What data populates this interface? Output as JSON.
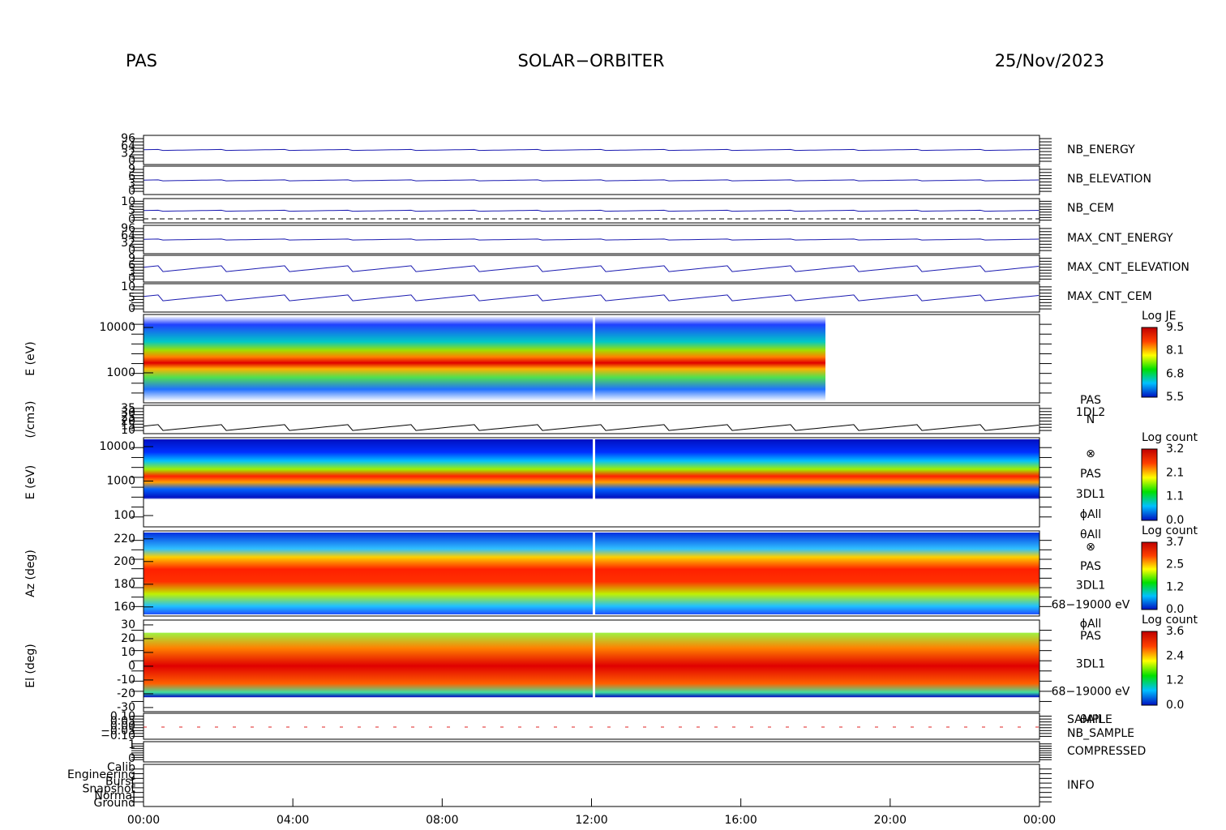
{
  "header": {
    "left": "PAS",
    "center": "SOLAR−ORBITER",
    "right": "25/Nov/2023"
  },
  "panels": [
    {
      "label": "NB_ENERGY",
      "label_color": "#1a1aa0",
      "yticks": [
        "96",
        "64",
        "32",
        "0"
      ]
    },
    {
      "label": "NB_ELEVATION",
      "label_color": "#1a1aa0",
      "yticks": [
        "9",
        "6",
        "3",
        "0"
      ]
    },
    {
      "label": "NB_CEM",
      "label_color": "#1a1aa0",
      "yticks": [
        "10",
        "5",
        "0"
      ]
    },
    {
      "label": "MAX_CNT_ENERGY",
      "label_color": "#1a1aa0",
      "yticks": [
        "96",
        "64",
        "32",
        "0"
      ]
    },
    {
      "label": "MAX_CNT_ELEVATION",
      "label_color": "#1a1aa0",
      "yticks": [
        "9",
        "6",
        "3",
        "0"
      ]
    },
    {
      "label": "MAX_CNT_CEM",
      "label_color": "#1a1aa0",
      "yticks": [
        "10",
        "5",
        "0"
      ]
    },
    {
      "ylabel": "E (eV)",
      "log": true,
      "ylim": [
        218,
        19300
      ],
      "yticks": [
        10000,
        1000
      ],
      "colorbar": {
        "title": "Log JE",
        "ticks": [
          "9.5",
          "8.1",
          "6.8",
          "5.5"
        ]
      }
    },
    {
      "ylabel": "(/cm3)",
      "yticks": [
        "35",
        "30",
        "25",
        "20",
        "15",
        "10"
      ],
      "right": [
        "PAS",
        "1DL2",
        "N"
      ]
    },
    {
      "ylabel": "E (eV)",
      "log": true,
      "ylim": [
        47,
        18140
      ],
      "yticks": [
        10000,
        1000,
        100
      ],
      "colorbar": {
        "title": "Log count",
        "ticks": [
          "3.2",
          "2.1",
          "1.1",
          "0.0"
        ]
      },
      "right": [
        "⊗",
        "PAS",
        "3DL1",
        "ϕAll",
        "θAll"
      ]
    },
    {
      "ylabel": "Az (deg)",
      "ylim": [
        152,
        227
      ],
      "yticks": [
        220,
        200,
        180,
        160
      ],
      "colorbar": {
        "title": "Log count",
        "ticks": [
          "3.7",
          "2.5",
          "1.2",
          "0.0"
        ]
      },
      "right": [
        "⊗",
        "PAS",
        "3DL1",
        "68−19000 eV",
        "ϕAll"
      ]
    },
    {
      "ylabel": "El (deg)",
      "ylim": [
        -33,
        33.5
      ],
      "yticks": [
        30,
        20,
        10,
        0,
        -10,
        -20,
        -30
      ],
      "colorbar": {
        "title": "Log count",
        "ticks": [
          "3.6",
          "2.4",
          "1.2",
          "0.0"
        ]
      },
      "right": [
        "PAS",
        "3DL1",
        "68−19000 eV",
        "θAll"
      ]
    },
    {
      "label": "SAMPLE",
      "label_color": "#1a1aa0",
      "label2": "NB_SAMPLE",
      "label2_color": "#e02020",
      "yticks": [
        "0.10",
        "0.05",
        "0.00",
        "−0.05",
        "−0.10"
      ]
    },
    {
      "label": "COMPRESSED",
      "label_color": "#1a1aa0",
      "yticks": [
        "1",
        "0"
      ]
    },
    {
      "label": "INFO",
      "label_color": "#1a1aa0",
      "yticks": [
        "Calib",
        "Engineering",
        "Burst",
        "Snapshot",
        "Normal",
        "Ground"
      ]
    }
  ],
  "x_ticks": [
    "00:00",
    "04:00",
    "08:00",
    "12:00",
    "16:00",
    "20:00",
    "00:00"
  ]
}
